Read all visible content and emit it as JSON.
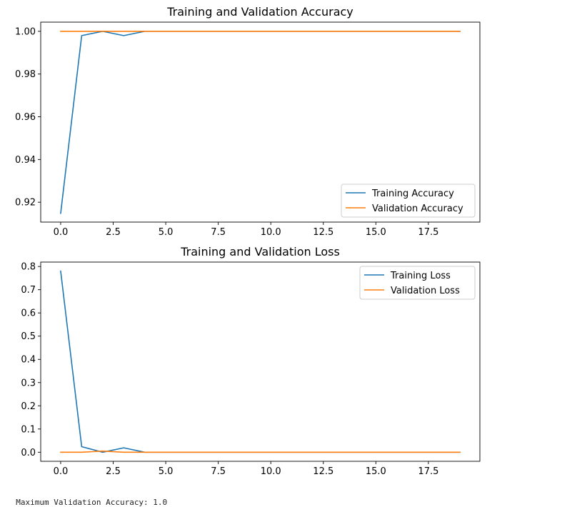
{
  "chart_data": [
    {
      "type": "line",
      "title": "Training and Validation Accuracy",
      "xlabel": "",
      "ylabel": "",
      "x": [
        0,
        1,
        2,
        3,
        4,
        5,
        6,
        7,
        8,
        9,
        10,
        11,
        12,
        13,
        14,
        15,
        16,
        17,
        18,
        19
      ],
      "xlim": [
        -0.95,
        19.95
      ],
      "ylim": [
        0.9107,
        1.0043
      ],
      "xticks": [
        0.0,
        2.5,
        5.0,
        7.5,
        10.0,
        12.5,
        15.0,
        17.5
      ],
      "xtick_labels": [
        "0.0",
        "2.5",
        "5.0",
        "7.5",
        "10.0",
        "12.5",
        "15.0",
        "17.5"
      ],
      "yticks": [
        0.92,
        0.94,
        0.96,
        0.98,
        1.0
      ],
      "ytick_labels": [
        "0.92",
        "0.94",
        "0.96",
        "0.98",
        "1.00"
      ],
      "legend": "lower right",
      "grid": false,
      "series": [
        {
          "name": "Training Accuracy",
          "color": "#1f77b4",
          "values": [
            0.9148,
            0.998,
            1.0,
            0.998,
            1.0,
            1.0,
            1.0,
            1.0,
            1.0,
            1.0,
            1.0,
            1.0,
            1.0,
            1.0,
            1.0,
            1.0,
            1.0,
            1.0,
            1.0,
            1.0
          ]
        },
        {
          "name": "Validation Accuracy",
          "color": "#ff7f0e",
          "values": [
            1.0,
            1.0,
            1.0,
            1.0,
            1.0,
            1.0,
            1.0,
            1.0,
            1.0,
            1.0,
            1.0,
            1.0,
            1.0,
            1.0,
            1.0,
            1.0,
            1.0,
            1.0,
            1.0,
            1.0
          ]
        }
      ]
    },
    {
      "type": "line",
      "title": "Training and Validation Loss",
      "xlabel": "",
      "ylabel": "",
      "x": [
        0,
        1,
        2,
        3,
        4,
        5,
        6,
        7,
        8,
        9,
        10,
        11,
        12,
        13,
        14,
        15,
        16,
        17,
        18,
        19
      ],
      "xlim": [
        -0.95,
        19.95
      ],
      "ylim": [
        -0.039,
        0.819
      ],
      "xticks": [
        0.0,
        2.5,
        5.0,
        7.5,
        10.0,
        12.5,
        15.0,
        17.5
      ],
      "xtick_labels": [
        "0.0",
        "2.5",
        "5.0",
        "7.5",
        "10.0",
        "12.5",
        "15.0",
        "17.5"
      ],
      "yticks": [
        0.0,
        0.1,
        0.2,
        0.3,
        0.4,
        0.5,
        0.6,
        0.7,
        0.8
      ],
      "ytick_labels": [
        "0.0",
        "0.1",
        "0.2",
        "0.3",
        "0.4",
        "0.5",
        "0.6",
        "0.7",
        "0.8"
      ],
      "legend": "upper right",
      "grid": false,
      "series": [
        {
          "name": "Training Loss",
          "color": "#1f77b4",
          "values": [
            0.78,
            0.024,
            0.0,
            0.019,
            0.0,
            0.0,
            0.0,
            0.0,
            0.0,
            0.0,
            0.0,
            0.0,
            0.0,
            0.0,
            0.0,
            0.0,
            0.0,
            0.0,
            0.0,
            0.0
          ]
        },
        {
          "name": "Validation Loss",
          "color": "#ff7f0e",
          "values": [
            0.0,
            0.0,
            0.005,
            0.0,
            0.0,
            0.0,
            0.0,
            0.0,
            0.0,
            0.0,
            0.0,
            0.0,
            0.0,
            0.0,
            0.0,
            0.0,
            0.0,
            0.0,
            0.0,
            0.0
          ]
        }
      ]
    }
  ],
  "footer": {
    "text": "Maximum Validation Accuracy: 1.0"
  }
}
